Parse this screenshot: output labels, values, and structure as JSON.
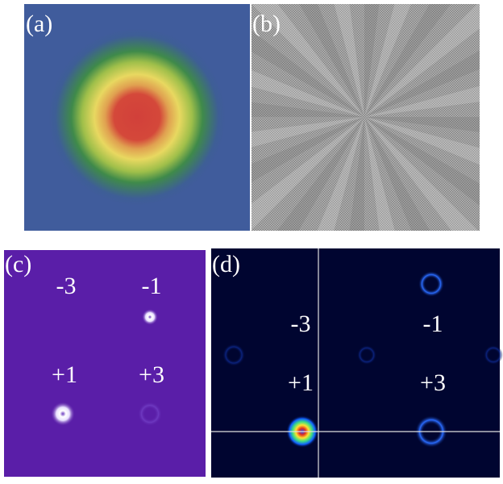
{
  "panels": [
    {
      "label": "(a)"
    },
    {
      "label": "(b)"
    },
    {
      "label": "(c)",
      "orders": [
        "-3",
        "-1",
        "+1",
        "+3"
      ]
    },
    {
      "label": "(d)",
      "orders": [
        "-3",
        "-1",
        "+1",
        "+3"
      ]
    }
  ]
}
